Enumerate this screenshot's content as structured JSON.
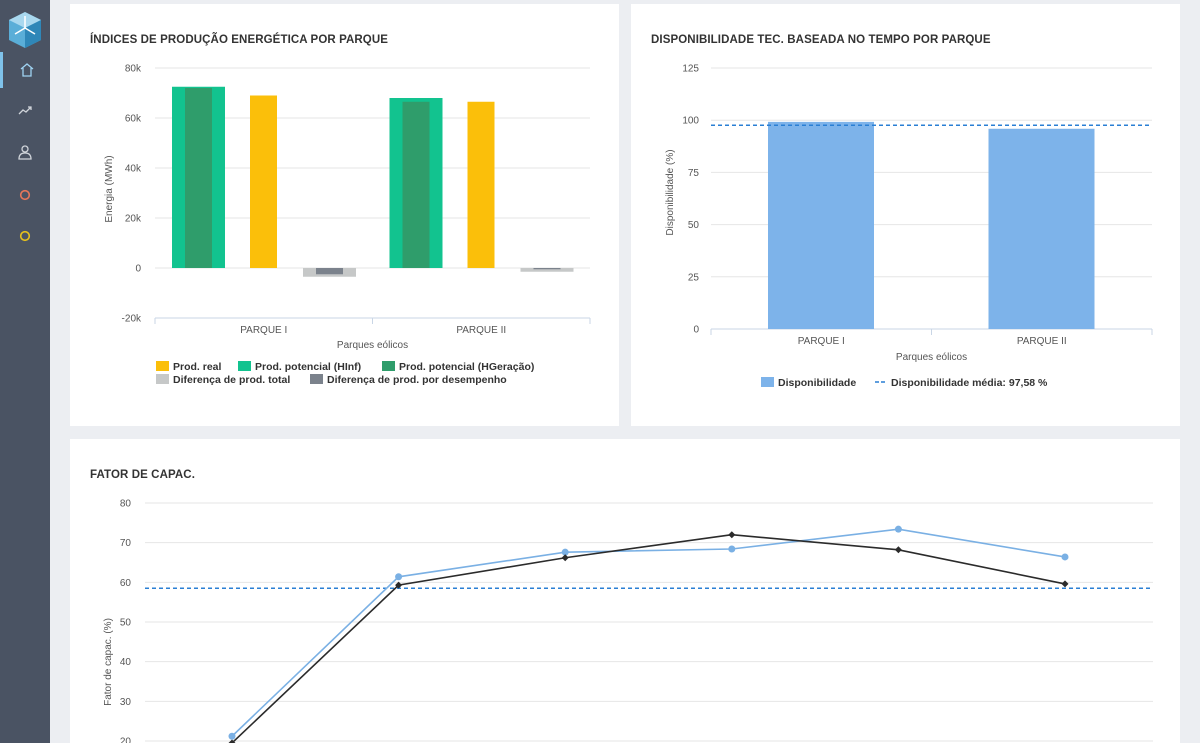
{
  "nav": {
    "items": [
      {
        "name": "nav-home",
        "icon": "home-icon",
        "active": true
      },
      {
        "name": "nav-trend",
        "icon": "trend-icon",
        "active": false
      },
      {
        "name": "nav-user",
        "icon": "user-icon",
        "active": false
      },
      {
        "name": "nav-status-orange",
        "icon": "circle-icon",
        "active": false,
        "color": "#e8775a"
      },
      {
        "name": "nav-status-yellow",
        "icon": "circle-icon",
        "active": false,
        "color": "#e8c21b"
      }
    ]
  },
  "chart_data": [
    {
      "type": "bar",
      "title": "ÍNDICES DE PRODUÇÃO ENERGÉTICA POR PARQUE",
      "xlabel": "Parques eólicos",
      "ylabel": "Energia (MWh)",
      "ylim": [
        -20000,
        80000
      ],
      "yticks": [
        -20000,
        0,
        20000,
        40000,
        60000,
        80000
      ],
      "ytick_labels": [
        "-20k",
        "0",
        "20k",
        "40k",
        "60k",
        "80k"
      ],
      "categories": [
        "PARQUE I",
        "PARQUE II"
      ],
      "series": [
        {
          "name": "Prod. real",
          "color": "#fbbf0a",
          "values": [
            69000,
            66500
          ]
        },
        {
          "name": "Prod. potencial (HInf)",
          "color": "#12c38f",
          "values": [
            72500,
            68000
          ]
        },
        {
          "name": "Prod. potencial (HGeração)",
          "color": "#2f9d6b",
          "values": [
            72000,
            66500
          ]
        },
        {
          "name": "Diferença de prod. total",
          "color": "#c6c8c8",
          "values": [
            -3500,
            -1500
          ]
        },
        {
          "name": "Diferença de prod. por desempenho",
          "color": "#7b828c",
          "values": [
            -2500,
            -500
          ]
        }
      ],
      "legend_placement": "bottom",
      "grid": true
    },
    {
      "type": "bar",
      "title": "DISPONIBILIDADE TEC. BASEADA NO TEMPO POR PARQUE",
      "xlabel": "Parques eólicos",
      "ylabel": "Disponibilidade (%)",
      "ylim": [
        0,
        125
      ],
      "yticks": [
        0,
        25,
        50,
        75,
        100,
        125
      ],
      "categories": [
        "PARQUE I",
        "PARQUE II"
      ],
      "series": [
        {
          "name": "Disponibilidade",
          "color": "#7db3ea",
          "values": [
            99.2,
            95.9
          ]
        }
      ],
      "reference_line": {
        "name": "Disponibilidade média: 97,58 %",
        "value": 97.58,
        "color": "#2a7fd4",
        "style": "dashed"
      },
      "legend_placement": "bottom",
      "grid": true
    },
    {
      "type": "line",
      "title": "FATOR DE CAPAC.",
      "ylabel": "Fator de capac. (%)",
      "ylim": [
        20,
        80
      ],
      "yticks": [
        20,
        30,
        40,
        50,
        60,
        70,
        80
      ],
      "x": [
        1,
        2,
        3,
        4,
        5,
        6
      ],
      "series": [
        {
          "color": "#7ab0e4",
          "marker": "circle",
          "values": [
            21.2,
            61.4,
            67.6,
            68.4,
            73.4,
            66.4
          ]
        },
        {
          "color": "#2b2b2b",
          "marker": "diamond",
          "values": [
            19.5,
            59.3,
            66.2,
            72.0,
            68.2,
            59.6
          ]
        }
      ],
      "reference_line": {
        "value": 58.5,
        "color": "#2a7fd4",
        "style": "dashed"
      },
      "grid": true
    }
  ]
}
